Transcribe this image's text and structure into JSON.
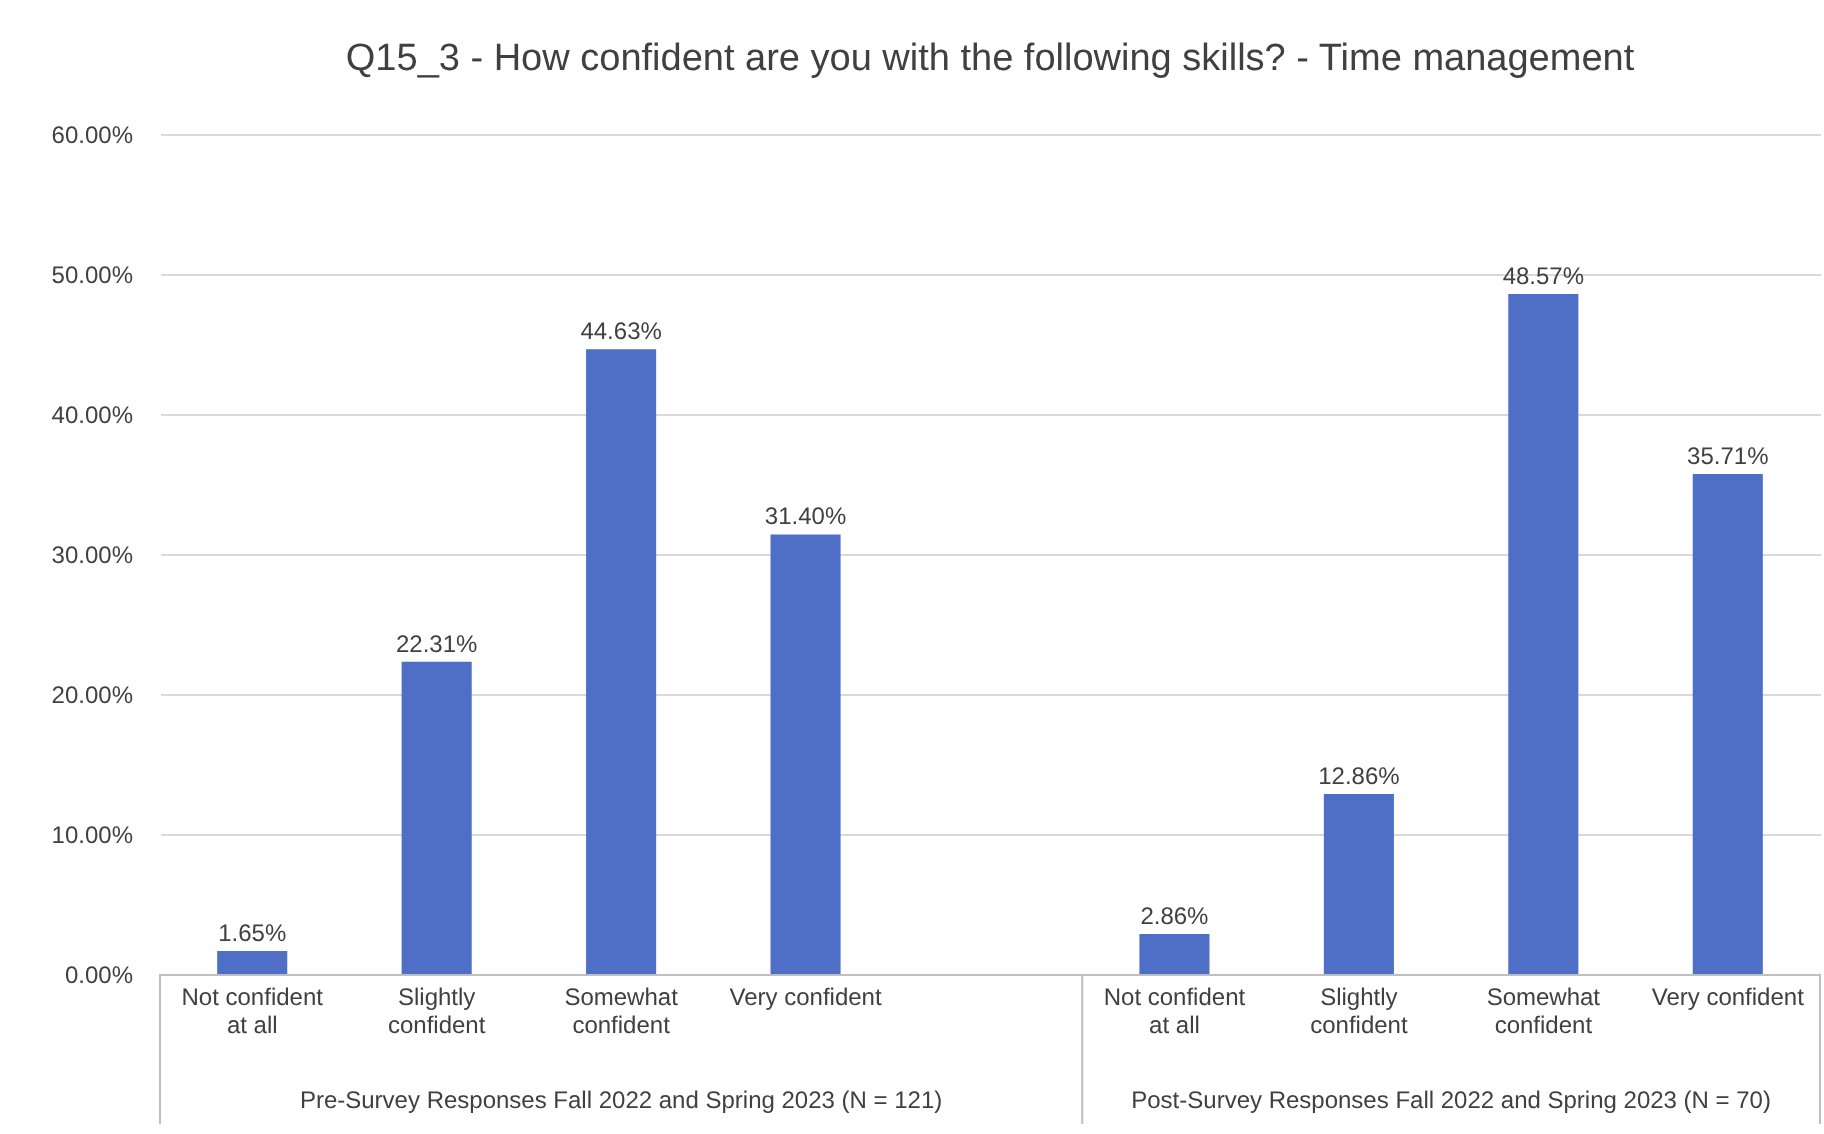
{
  "chart_data": {
    "type": "bar",
    "title": "Q15_3 - How confident are you with the following skills? - Time management",
    "categories": [
      "Not confident at all",
      "Slightly confident",
      "Somewhat confident",
      "Very confident",
      null,
      "Not confident at all",
      "Slightly confident",
      "Somewhat confident",
      "Very confident"
    ],
    "values": [
      1.65,
      22.31,
      44.63,
      31.4,
      null,
      2.86,
      12.86,
      48.57,
      35.71
    ],
    "value_labels": [
      "1.65%",
      "22.31%",
      "44.63%",
      "31.40%",
      null,
      "2.86%",
      "12.86%",
      "48.57%",
      "35.71%"
    ],
    "color": "#4f6fc6",
    "ylim": [
      0,
      60
    ],
    "yticks": [
      {
        "value": 0,
        "label": "0.00%"
      },
      {
        "value": 10,
        "label": "10.00%"
      },
      {
        "value": 20,
        "label": "20.00%"
      },
      {
        "value": 30,
        "label": "30.00%"
      },
      {
        "value": 40,
        "label": "40.00%"
      },
      {
        "value": 50,
        "label": "50.00%"
      },
      {
        "value": 60,
        "label": "60.00%"
      }
    ],
    "grid": "y",
    "annotations": [
      "Pre-Survey Responses Fall 2022 and Spring 2023 (N = 121)",
      "Post-Survey Responses Fall 2022 and Spring 2023 (N = 70)"
    ]
  }
}
